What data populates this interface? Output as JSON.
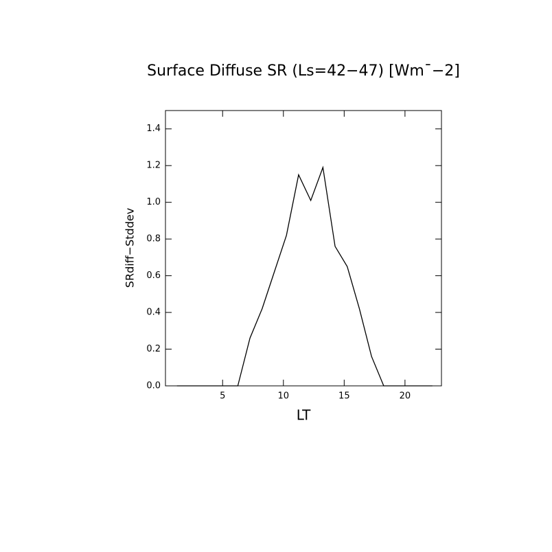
{
  "chart_data": {
    "type": "line",
    "title": "Surface Diffuse SR (Ls=42−47) [Wm¯−2]",
    "x_label": "LT",
    "y_label": "SRdiff−Stddev",
    "x": [
      1.25,
      2.25,
      3.25,
      4.25,
      5.25,
      6.25,
      7.25,
      8.25,
      9.25,
      10.25,
      11.25,
      12.25,
      13.25,
      14.25,
      15.25,
      16.25,
      17.25,
      18.25,
      19.25,
      20.25,
      21.25,
      22.25
    ],
    "values": [
      0,
      0,
      0,
      0,
      0,
      0,
      0.26,
      0.42,
      0.62,
      0.82,
      1.15,
      1.01,
      1.19,
      0.76,
      0.65,
      0.42,
      0.16,
      0,
      0,
      0,
      0,
      0
    ],
    "color": "#000000",
    "xlim": [
      0.3,
      23.0
    ],
    "ylim": [
      0,
      1.5
    ],
    "xticks": [
      5,
      10,
      15,
      20
    ],
    "yticks": [
      {
        "value": 0,
        "label": "0.0"
      },
      0.2,
      0.4,
      0.6,
      0.8,
      {
        "value": 1,
        "label": "1.0"
      },
      1.2,
      1.4
    ]
  }
}
